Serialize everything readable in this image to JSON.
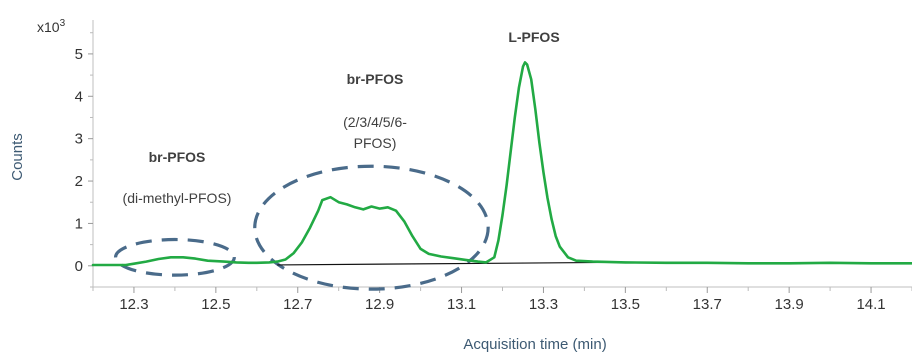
{
  "chart_data": {
    "type": "line",
    "title": "",
    "xlabel": "Acquisition time (min)",
    "ylabel": "Counts",
    "y_multiplier": "x10",
    "y_multiplier_exp": "3",
    "xlim": [
      12.2,
      14.2
    ],
    "ylim": [
      -0.5,
      5.8
    ],
    "x_ticks": [
      12.3,
      12.5,
      12.7,
      12.9,
      13.1,
      13.3,
      13.5,
      13.7,
      13.9,
      14.1
    ],
    "x_tick_labels": [
      "12.3",
      "12.5",
      "12.7",
      "12.9",
      "13.1",
      "13.3",
      "13.5",
      "13.7",
      "13.9",
      "14.1"
    ],
    "y_ticks": [
      0,
      1,
      2,
      3,
      4,
      5
    ],
    "y_tick_labels": [
      "0",
      "1",
      "2",
      "3",
      "4",
      "5"
    ],
    "grid": false,
    "series_color": "#22aa44",
    "baseline_color": "#111111",
    "ellipse_color": "#4a6b8a",
    "series": [
      {
        "x": [
          12.2,
          12.28,
          12.3,
          12.33,
          12.36,
          12.39,
          12.42,
          12.45,
          12.48,
          12.52,
          12.55,
          12.58,
          12.6,
          12.63,
          12.65,
          12.67,
          12.69,
          12.71,
          12.73,
          12.75,
          12.76,
          12.78,
          12.8,
          12.82,
          12.84,
          12.86,
          12.88,
          12.9,
          12.92,
          12.94,
          12.96,
          12.98,
          13.0,
          13.02,
          13.05,
          13.08,
          13.11,
          13.14,
          13.16,
          13.18,
          13.19,
          13.2,
          13.21,
          13.22,
          13.23,
          13.24,
          13.25,
          13.255,
          13.26,
          13.27,
          13.28,
          13.29,
          13.3,
          13.31,
          13.32,
          13.33,
          13.34,
          13.36,
          13.38,
          13.42,
          13.5,
          13.6,
          13.7,
          13.8,
          13.9,
          14.0,
          14.1,
          14.2
        ],
        "y": [
          0.02,
          0.02,
          0.05,
          0.1,
          0.16,
          0.2,
          0.2,
          0.17,
          0.12,
          0.1,
          0.08,
          0.07,
          0.07,
          0.08,
          0.1,
          0.15,
          0.3,
          0.55,
          0.9,
          1.3,
          1.55,
          1.62,
          1.5,
          1.45,
          1.38,
          1.33,
          1.4,
          1.35,
          1.38,
          1.3,
          1.05,
          0.7,
          0.4,
          0.28,
          0.22,
          0.18,
          0.14,
          0.1,
          0.08,
          0.2,
          0.6,
          1.2,
          1.9,
          2.7,
          3.5,
          4.2,
          4.7,
          4.8,
          4.75,
          4.4,
          3.7,
          2.9,
          2.2,
          1.6,
          1.1,
          0.7,
          0.45,
          0.2,
          0.12,
          0.1,
          0.08,
          0.07,
          0.07,
          0.06,
          0.06,
          0.07,
          0.06,
          0.06
        ]
      }
    ],
    "baseline": {
      "x": [
        12.65,
        13.45
      ],
      "y": [
        0.02,
        0.08
      ]
    },
    "annotations": [
      {
        "bold": "br-PFOS",
        "lines": [
          "(di-methyl-PFOS)"
        ]
      },
      {
        "bold": "br-PFOS",
        "lines": [
          "(2/3/4/5/6-",
          "PFOS)"
        ]
      },
      {
        "bold": "L-PFOS",
        "lines": []
      }
    ],
    "ellipses": [
      {
        "cx": 12.4,
        "cy": 0.2,
        "rx": 0.145,
        "ry": 0.42
      },
      {
        "cx": 12.88,
        "cy": 0.9,
        "rx": 0.285,
        "ry": 1.45
      }
    ]
  }
}
